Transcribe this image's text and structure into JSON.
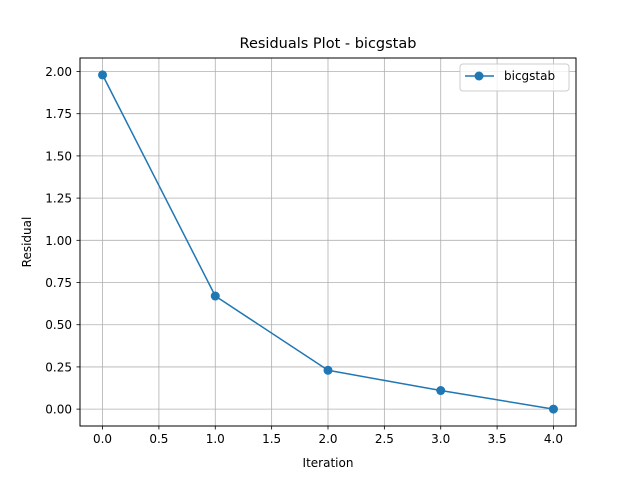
{
  "chart_data": {
    "type": "line",
    "title": "Residuals Plot - bicgstab",
    "xlabel": "Iteration",
    "ylabel": "Residual",
    "xlim": [
      -0.2,
      4.2
    ],
    "ylim": [
      -0.1,
      2.08
    ],
    "xticks": [
      0.0,
      0.5,
      1.0,
      1.5,
      2.0,
      2.5,
      3.0,
      3.5,
      4.0
    ],
    "xtick_labels": [
      "0.0",
      "0.5",
      "1.0",
      "1.5",
      "2.0",
      "2.5",
      "3.0",
      "3.5",
      "4.0"
    ],
    "yticks": [
      0.0,
      0.25,
      0.5,
      0.75,
      1.0,
      1.25,
      1.5,
      1.75,
      2.0
    ],
    "ytick_labels": [
      "0.00",
      "0.25",
      "0.50",
      "0.75",
      "1.00",
      "1.25",
      "1.50",
      "1.75",
      "2.00"
    ],
    "grid": true,
    "legend_position": "top-right",
    "series": [
      {
        "name": "bicgstab",
        "color": "#1f77b4",
        "marker": "circle",
        "x": [
          0,
          1,
          2,
          3,
          4
        ],
        "y": [
          1.98,
          0.67,
          0.23,
          0.11,
          0.0
        ]
      }
    ]
  }
}
